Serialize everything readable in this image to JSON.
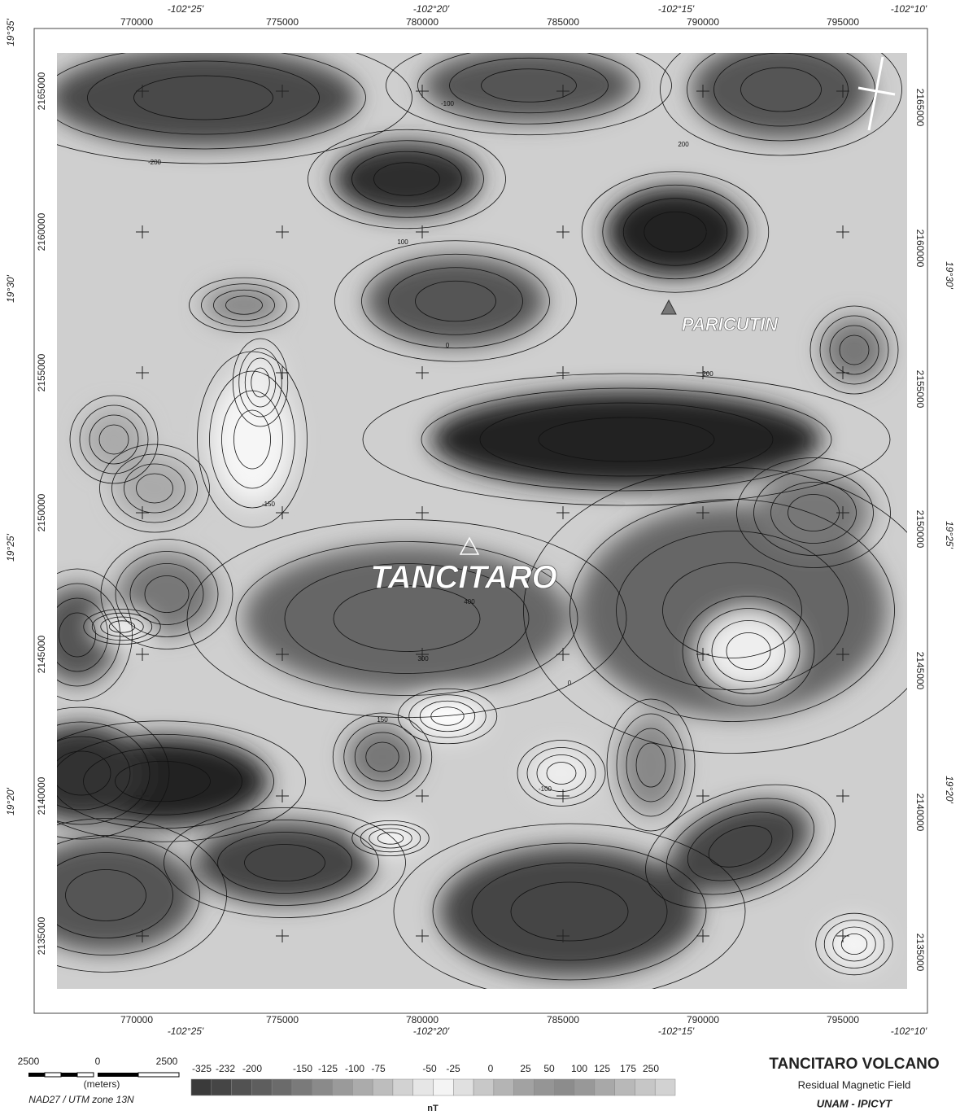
{
  "map": {
    "utm_x_labels": [
      770000,
      775000,
      780000,
      785000,
      790000,
      795000
    ],
    "utm_y_labels": [
      2165000,
      2160000,
      2155000,
      2150000,
      2145000,
      2140000,
      2135000
    ],
    "lon_labels": [
      "-102°25'",
      "-102°20'",
      "-102°15'",
      "-102°10'"
    ],
    "lat_labels": [
      "19°35'",
      "19°30'",
      "19°25'",
      "19°20'"
    ],
    "place_labels": [
      "TANCITARO",
      "PARICUTIN"
    ],
    "contour_labels": [
      "-100",
      "200",
      "100",
      "0",
      "400",
      "300",
      "-200",
      "150",
      "-100",
      "200",
      "0",
      "-150"
    ]
  },
  "scale_bar": {
    "labels": [
      2500,
      0,
      2500
    ],
    "unit": "(meters)",
    "projection": "NAD27 / UTM zone 13N"
  },
  "legend": {
    "tick_labels": [
      -325,
      -232,
      -200,
      -150,
      -125,
      -100,
      -75,
      -50,
      -25,
      0,
      25,
      50,
      100,
      125,
      175,
      250
    ],
    "unit": "nT",
    "colors": [
      "#3a3a3a",
      "#454545",
      "#525252",
      "#5e5e5e",
      "#6b6b6b",
      "#7a7a7a",
      "#8a8a8a",
      "#9a9a9a",
      "#ababab",
      "#bdbdbd",
      "#d2d2d2",
      "#e6e6e6",
      "#f4f4f4",
      "#e0e0e0",
      "#c8c8c8",
      "#b4b4b4",
      "#a2a2a2",
      "#959595",
      "#8c8c8c",
      "#989898",
      "#a8a8a8",
      "#b8b8b8",
      "#c6c6c6",
      "#d2d2d2"
    ]
  },
  "title": {
    "main": "TANCITARO VOLCANO",
    "subtitle": "Residual Magnetic Field",
    "credit": "UNAM - IPICYT"
  }
}
